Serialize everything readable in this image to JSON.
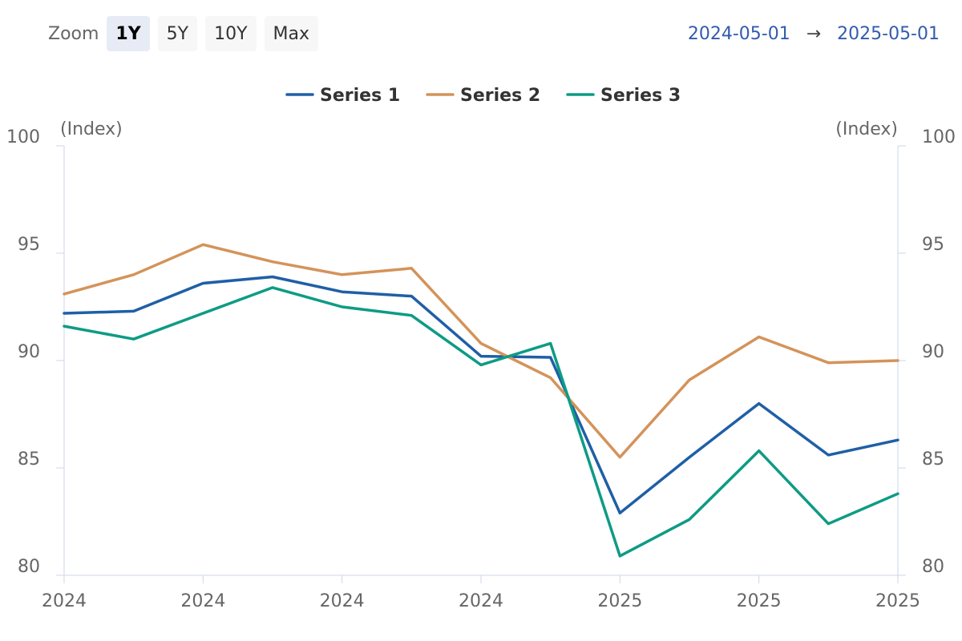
{
  "toolbar": {
    "zoom_label": "Zoom",
    "buttons": [
      "1Y",
      "5Y",
      "10Y",
      "Max"
    ],
    "active": "1Y"
  },
  "range": {
    "from": "2024-05-01",
    "to": "2025-05-01",
    "separator": "→"
  },
  "chart_data": {
    "type": "line",
    "unit_label_left": "(Index)",
    "unit_label_right": "(Index)",
    "ylim": [
      80,
      100
    ],
    "y_ticks": [
      80,
      85,
      90,
      95,
      100
    ],
    "x": [
      "2024-05",
      "2024-06",
      "2024-07",
      "2024-08",
      "2024-09",
      "2024-10",
      "2024-11",
      "2024-12",
      "2025-01",
      "2025-02",
      "2025-03",
      "2025-04",
      "2025-05"
    ],
    "x_tick_labels": [
      "2024",
      "2024",
      "2024",
      "2024",
      "2025",
      "2025",
      "2025"
    ],
    "legend_position": "top-center",
    "grid": false,
    "colors": [
      "#1f5fa6",
      "#d4935a",
      "#0e9b85"
    ],
    "series": [
      {
        "name": "Series 1",
        "values": [
          92.2,
          92.3,
          93.6,
          93.9,
          93.2,
          93.0,
          90.2,
          90.15,
          82.9,
          85.5,
          88.0,
          85.6,
          86.3
        ]
      },
      {
        "name": "Series 2",
        "values": [
          93.1,
          94.0,
          95.4,
          94.6,
          94.0,
          94.3,
          90.8,
          89.2,
          85.5,
          89.1,
          91.1,
          89.9,
          90.0
        ]
      },
      {
        "name": "Series 3",
        "values": [
          91.6,
          91.0,
          92.2,
          93.4,
          92.5,
          92.1,
          89.8,
          90.8,
          80.9,
          82.6,
          85.8,
          82.4,
          83.8
        ]
      }
    ]
  }
}
